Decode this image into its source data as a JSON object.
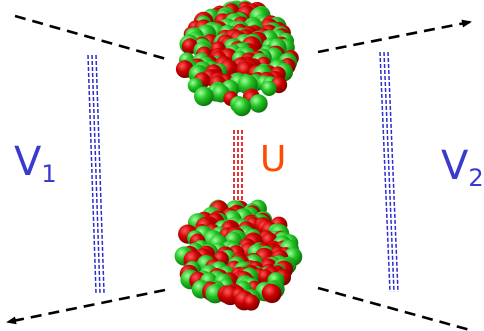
{
  "labels": {
    "v1": {
      "main": "V",
      "sub": "1"
    },
    "v2": {
      "main": "V",
      "sub": "2"
    },
    "u": "U"
  },
  "colors": {
    "nucleon_red": "#cc0000",
    "nucleon_green": "#22c322",
    "interaction_blue": "#2b2bd0",
    "interaction_red": "#e00000",
    "label_blue": "#3a3acc",
    "label_orange": "#ff4a00",
    "line": "#000000"
  }
}
